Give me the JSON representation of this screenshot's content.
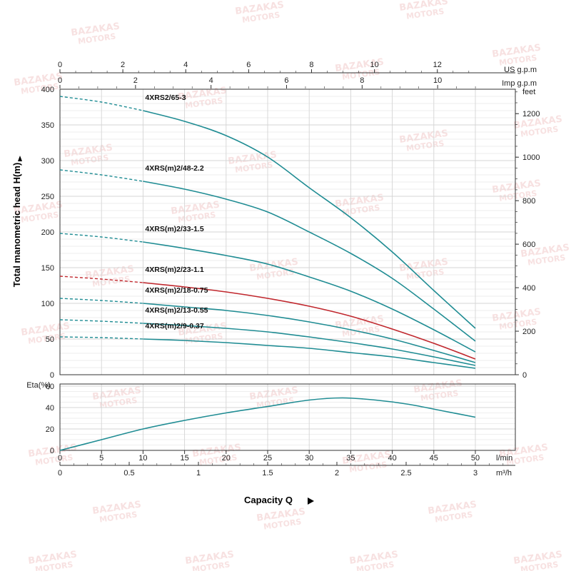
{
  "watermark": {
    "line1": "BAZAKAS",
    "line2": "MOTORS",
    "color": "#e36a6a"
  },
  "chart_data": {
    "type": "line",
    "colors": {
      "curve": "#1f8c93",
      "highlight": "#c0272d",
      "grid": "#d4d4d4",
      "frame": "#333333"
    },
    "head_chart": {
      "ylabel": "Total manometric head H(m)",
      "ylim": [
        0,
        400
      ],
      "yticks": [
        0,
        50,
        100,
        150,
        200,
        250,
        300,
        350,
        400
      ],
      "feet_label": "feet",
      "feet_ticks": [
        0,
        200,
        400,
        600,
        800,
        1000,
        1200
      ],
      "us_gpm_label": "US g.p.m",
      "us_gpm_ticks": [
        0,
        2,
        4,
        6,
        8,
        10,
        12
      ],
      "imp_gpm_label": "Imp g.p.m",
      "imp_gpm_ticks": [
        0,
        2,
        4,
        6,
        8,
        10
      ],
      "series": [
        {
          "name": "4XRS2/65-3",
          "highlight": false,
          "dashed_until": 10,
          "x": [
            0,
            5,
            10,
            15,
            20,
            25,
            30,
            35,
            40,
            45,
            50
          ],
          "y": [
            390,
            382,
            370,
            355,
            335,
            305,
            262,
            220,
            172,
            118,
            65
          ]
        },
        {
          "name": "4XRS(m)2/48-2.2",
          "highlight": false,
          "dashed_until": 10,
          "x": [
            0,
            5,
            10,
            15,
            20,
            25,
            30,
            35,
            40,
            45,
            50
          ],
          "y": [
            287,
            280,
            271,
            260,
            246,
            228,
            200,
            170,
            135,
            92,
            47
          ]
        },
        {
          "name": "4XRS(m)2/33-1.5",
          "highlight": false,
          "dashed_until": 10,
          "x": [
            0,
            5,
            10,
            15,
            20,
            25,
            30,
            35,
            40,
            45,
            50
          ],
          "y": [
            198,
            193,
            186,
            177,
            167,
            155,
            137,
            117,
            92,
            63,
            32
          ]
        },
        {
          "name": "4XRS(m)2/23-1.1",
          "highlight": true,
          "dashed_until": 10,
          "x": [
            0,
            5,
            10,
            15,
            20,
            25,
            30,
            35,
            40,
            45,
            50
          ],
          "y": [
            138,
            134,
            129,
            123,
            116,
            107,
            96,
            82,
            64,
            44,
            22
          ]
        },
        {
          "name": "4XRS(m)2/18-0.75",
          "highlight": false,
          "dashed_until": 10,
          "x": [
            0,
            5,
            10,
            15,
            20,
            25,
            30,
            35,
            40,
            45,
            50
          ],
          "y": [
            107,
            104,
            100,
            95,
            90,
            83,
            74,
            63,
            50,
            34,
            17
          ]
        },
        {
          "name": "4XRS(m)2/13-0.55",
          "highlight": false,
          "dashed_until": 10,
          "x": [
            0,
            5,
            10,
            15,
            20,
            25,
            30,
            35,
            40,
            45,
            50
          ],
          "y": [
            77,
            75,
            72,
            69,
            65,
            60,
            53,
            45,
            36,
            25,
            13
          ]
        },
        {
          "name": "4XRS(m)2/9-0.37",
          "highlight": false,
          "dashed_until": 10,
          "x": [
            0,
            5,
            10,
            15,
            20,
            25,
            30,
            35,
            40,
            45,
            50
          ],
          "y": [
            53,
            52,
            50,
            48,
            45,
            41,
            37,
            31,
            25,
            17,
            9
          ]
        }
      ]
    },
    "efficiency_chart": {
      "ylabel": "Eta(%)",
      "ylim": [
        0,
        60
      ],
      "yticks": [
        0,
        20,
        40,
        60
      ],
      "series": [
        {
          "name": "",
          "x": [
            0,
            5,
            10,
            15,
            20,
            25,
            30,
            34,
            38,
            42,
            46,
            50
          ],
          "y": [
            0,
            10,
            20,
            28,
            35,
            41,
            47,
            49,
            47,
            43,
            37,
            31
          ]
        }
      ]
    },
    "x_axis": {
      "title": "Capacity Q",
      "lmin_label": "l/min",
      "lmin_ticks": [
        0,
        5,
        10,
        15,
        20,
        25,
        30,
        35,
        40,
        45,
        50
      ],
      "m3h_label": "m³/h",
      "m3h_ticks": [
        "0",
        "0.5",
        "1",
        "1.5",
        "2",
        "2.5",
        "3"
      ],
      "xlim": [
        0,
        50
      ]
    }
  }
}
